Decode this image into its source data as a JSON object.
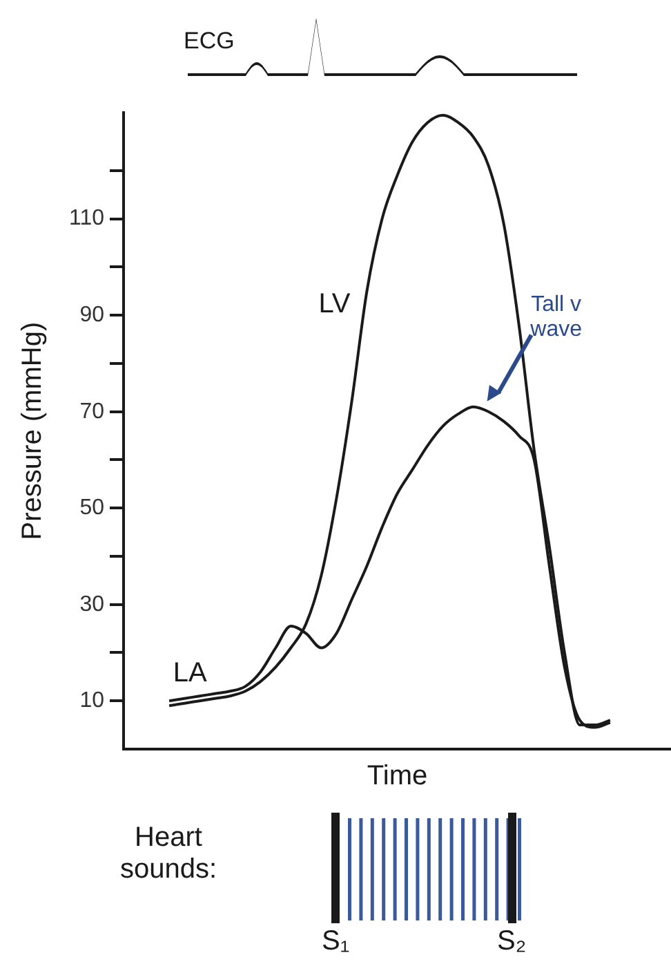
{
  "chart_data": {
    "type": "line",
    "xlabel": "Time",
    "ylabel": "Pressure (mmHg)",
    "categories": [
      null,
      null,
      null,
      null,
      null,
      null,
      null,
      null,
      null,
      null,
      null,
      null,
      null,
      null,
      null,
      null,
      null,
      null,
      null,
      null,
      null,
      null,
      null,
      null,
      null,
      null,
      null,
      null,
      null,
      null,
      null,
      null,
      null,
      null,
      null,
      null,
      null
    ],
    "series": [
      {
        "name": "LV",
        "color": "#1a1a1a",
        "values": [
          null,
          null,
          null,
          9,
          9.5,
          10,
          10.5,
          11,
          12,
          14,
          17,
          21,
          26,
          36,
          52,
          72,
          95,
          110,
          119,
          126,
          130,
          131.5,
          130,
          127,
          121,
          109,
          88,
          62,
          42,
          20,
          5,
          5,
          6,
          null,
          null,
          null,
          null
        ]
      },
      {
        "name": "LA",
        "color": "#1a1a1a",
        "values": [
          null,
          null,
          null,
          10,
          10.5,
          11,
          11.5,
          12,
          13,
          16,
          21,
          25.5,
          24,
          21,
          24,
          31,
          38,
          46,
          53,
          58,
          63,
          67,
          69.5,
          71,
          70,
          68,
          65,
          60,
          38,
          17,
          6,
          4.5,
          5.5,
          null,
          null,
          null,
          null
        ]
      }
    ],
    "ylim": [
      0,
      132
    ],
    "yticks": [
      10,
      {
        "value": 20,
        "label": null
      },
      30,
      {
        "value": 40,
        "label": null
      },
      50,
      {
        "value": 60,
        "label": null
      },
      70,
      {
        "value": 80,
        "label": null
      },
      90,
      {
        "value": 100,
        "label": null
      },
      110,
      {
        "value": 120,
        "label": null
      }
    ],
    "tick_labels": "y",
    "grid": false,
    "legend": false,
    "marker": "none",
    "annotations": [
      "ECG",
      "Heart sounds:",
      "S₁",
      "S₂",
      "Tall v wave"
    ]
  }
}
